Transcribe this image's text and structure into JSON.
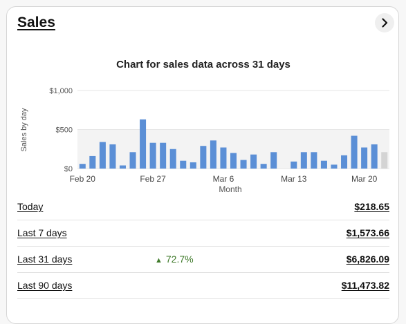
{
  "card": {
    "title": "Sales",
    "chevron_icon": "chevron-right-icon"
  },
  "chart_data": {
    "type": "bar",
    "title": "Chart for sales data across 31 days",
    "xlabel": "Month",
    "ylabel": "Sales by day",
    "ylim": [
      0,
      1000
    ],
    "yticks": [
      "$0",
      "$500",
      "$1,000"
    ],
    "xticks": [
      "Feb 20",
      "Feb 27",
      "Mar 6",
      "Mar 13",
      "Mar 20"
    ],
    "categories": [
      "Feb 20",
      "Feb 21",
      "Feb 22",
      "Feb 23",
      "Feb 24",
      "Feb 25",
      "Feb 26",
      "Feb 27",
      "Feb 28",
      "Mar 1",
      "Mar 2",
      "Mar 3",
      "Mar 4",
      "Mar 5",
      "Mar 6",
      "Mar 7",
      "Mar 8",
      "Mar 9",
      "Mar 10",
      "Mar 11",
      "Mar 12",
      "Mar 13",
      "Mar 14",
      "Mar 15",
      "Mar 16",
      "Mar 17",
      "Mar 18",
      "Mar 19",
      "Mar 20",
      "Mar 21",
      "Mar 22"
    ],
    "values": [
      60,
      160,
      340,
      310,
      40,
      210,
      630,
      330,
      330,
      250,
      100,
      80,
      290,
      360,
      270,
      200,
      110,
      180,
      60,
      210,
      0,
      90,
      210,
      210,
      100,
      50,
      170,
      420,
      270,
      310,
      210
    ],
    "bar_color": "#5b8fd6",
    "last_bar_color": "#d4d4d4",
    "band_color": "#f3f3f3",
    "grid": true
  },
  "stats": {
    "rows": [
      {
        "label": "Today",
        "value": "$218.65",
        "change": ""
      },
      {
        "label": "Last 7 days",
        "value": "$1,573.66",
        "change": ""
      },
      {
        "label": "Last 31 days",
        "value": "$6,826.09",
        "change": "72.7%"
      },
      {
        "label": "Last 90 days",
        "value": "$11,473.82",
        "change": ""
      }
    ],
    "change_color": "#3f7a2a",
    "change_icon": "triangle-up-icon"
  }
}
